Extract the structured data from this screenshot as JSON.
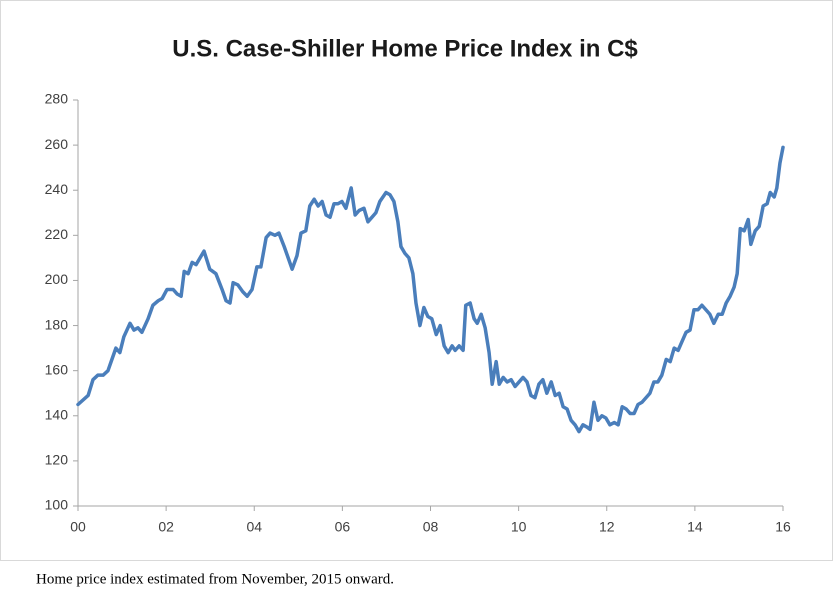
{
  "chart_data": {
    "type": "line",
    "title": "U.S. Case-Shiller Home Price Index in C$",
    "footnote": "Home price index estimated from November, 2015 onward.",
    "color": "#4a7ebb",
    "xlim": [
      0,
      16
    ],
    "xticks": [
      {
        "value": 0,
        "label": "00"
      },
      {
        "value": 2,
        "label": "02"
      },
      {
        "value": 4,
        "label": "04"
      },
      {
        "value": 6,
        "label": "06"
      },
      {
        "value": 8,
        "label": "08"
      },
      10,
      12,
      14,
      16
    ],
    "ylim": [
      100,
      280
    ],
    "yticks": [
      100,
      120,
      140,
      160,
      180,
      200,
      220,
      240,
      260,
      280
    ],
    "grid": false,
    "x": [
      0,
      0.23,
      0.34,
      0.45,
      0.57,
      0.68,
      0.77,
      0.86,
      0.95,
      1.04,
      1.18,
      1.27,
      1.36,
      1.45,
      1.59,
      1.7,
      1.82,
      1.91,
      2.02,
      2.16,
      2.25,
      2.34,
      2.41,
      2.5,
      2.59,
      2.68,
      2.77,
      2.86,
      2.99,
      3.13,
      3.27,
      3.36,
      3.45,
      3.52,
      3.63,
      3.74,
      3.84,
      3.95,
      4.06,
      4.15,
      4.27,
      4.36,
      4.47,
      4.56,
      4.68,
      4.77,
      4.86,
      4.97,
      5.06,
      5.17,
      5.26,
      5.36,
      5.45,
      5.54,
      5.63,
      5.72,
      5.81,
      5.9,
      5.99,
      6.08,
      6.2,
      6.29,
      6.38,
      6.49,
      6.58,
      6.67,
      6.76,
      6.85,
      6.99,
      7.08,
      7.17,
      7.26,
      7.33,
      7.42,
      7.51,
      7.6,
      7.67,
      7.76,
      7.85,
      7.94,
      8.03,
      8.13,
      8.22,
      8.31,
      8.4,
      8.49,
      8.56,
      8.65,
      8.74,
      8.8,
      8.9,
      8.99,
      9.06,
      9.15,
      9.24,
      9.33,
      9.4,
      9.49,
      9.56,
      9.65,
      9.74,
      9.83,
      9.92,
      10.01,
      10.1,
      10.19,
      10.28,
      10.37,
      10.46,
      10.55,
      10.64,
      10.74,
      10.83,
      10.92,
      11.01,
      11.1,
      11.19,
      11.28,
      11.37,
      11.46,
      11.55,
      11.62,
      11.71,
      11.8,
      11.89,
      11.98,
      12.07,
      12.17,
      12.26,
      12.35,
      12.44,
      12.53,
      12.62,
      12.71,
      12.8,
      12.89,
      12.98,
      13.07,
      13.16,
      13.25,
      13.35,
      13.44,
      13.53,
      13.62,
      13.71,
      13.8,
      13.89,
      13.98,
      14.07,
      14.16,
      14.25,
      14.34,
      14.43,
      14.53,
      14.62,
      14.71,
      14.8,
      14.89,
      14.96,
      15.03,
      15.12,
      15.21,
      15.27,
      15.37,
      15.46,
      15.55,
      15.64,
      15.71,
      15.8,
      15.86,
      15.93,
      16
    ],
    "values": [
      145,
      149,
      156,
      158,
      158,
      160,
      165,
      170,
      168,
      175,
      181,
      178,
      179,
      177,
      183,
      189,
      191,
      192,
      196,
      196,
      194,
      193,
      204,
      203,
      208,
      207,
      210,
      213,
      205,
      203,
      196,
      191,
      190,
      199,
      198,
      195,
      193,
      196,
      206,
      206,
      219,
      221,
      220,
      221,
      215,
      210,
      205,
      211,
      221,
      222,
      233,
      236,
      233,
      235,
      229,
      228,
      234,
      234,
      235,
      232,
      241,
      229,
      231,
      232,
      226,
      228,
      230,
      235,
      239,
      238,
      235,
      226,
      215,
      212,
      210,
      203,
      190,
      180,
      188,
      184,
      183,
      176,
      180,
      171,
      168,
      171,
      169,
      171,
      169,
      189,
      190,
      183,
      181,
      185,
      179,
      168,
      154,
      164,
      154,
      157,
      155,
      156,
      153,
      155,
      157,
      155,
      149,
      148,
      154,
      156,
      150,
      155,
      149,
      150,
      144,
      143,
      138,
      136,
      133,
      136,
      135,
      134,
      146,
      138,
      140,
      139,
      136,
      137,
      136,
      144,
      143,
      141,
      141,
      145,
      146,
      148,
      150,
      155,
      155,
      158,
      165,
      164,
      170,
      169,
      173,
      177,
      178,
      187,
      187,
      189,
      187,
      185,
      181,
      185,
      185,
      190,
      193,
      197,
      203,
      223,
      222,
      227,
      216,
      222,
      224,
      233,
      234,
      239,
      237,
      241,
      252,
      259
    ]
  }
}
